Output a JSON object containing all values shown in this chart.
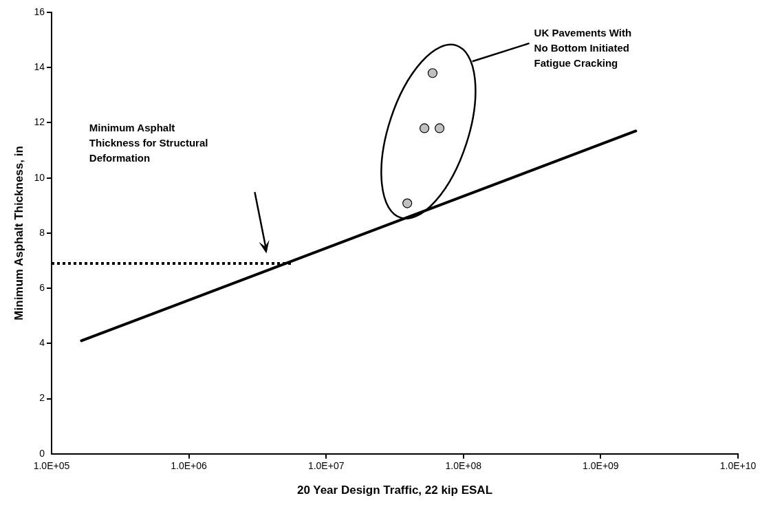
{
  "chart_data": {
    "type": "scatter",
    "xlabel": "20 Year Design Traffic, 22 kip ESAL",
    "ylabel": "Minimum Asphalt Thickness, in",
    "log": "x",
    "grid": false,
    "legend": false,
    "xlim": [
      100000,
      10000000000
    ],
    "xticks": [
      {
        "value": 100000,
        "label": "1.0E+05"
      },
      {
        "value": 1000000,
        "label": "1.0E+06"
      },
      {
        "value": 10000000,
        "label": "1.0E+07"
      },
      {
        "value": 100000000,
        "label": "1.0E+08"
      },
      {
        "value": 1000000000,
        "label": "1.0E+09"
      },
      {
        "value": 10000000000,
        "label": "1.0E+10"
      }
    ],
    "ylim": [
      0,
      16
    ],
    "yticks": [
      0,
      2,
      4,
      6,
      8,
      10,
      12,
      14,
      16
    ],
    "series": [
      {
        "type": "line",
        "color": "#000000",
        "marker": "none",
        "line_style": "solid",
        "x": [
          165000,
          1800000000
        ],
        "values": [
          4.1,
          11.7
        ]
      },
      {
        "type": "line",
        "color": "#000000",
        "marker": "none",
        "line_style": "dotted",
        "x": [
          100000,
          5700000
        ],
        "values": [
          6.9,
          6.9
        ]
      },
      {
        "type": "scatter",
        "color": "#c0c0c0",
        "marker": "circle",
        "x": [
          59600000,
          52000000,
          67000000,
          39000000
        ],
        "values": [
          13.8,
          11.8,
          11.8,
          9.08
        ]
      }
    ],
    "annotations": [
      "Minimum Asphalt Thickness for Structural Deformation",
      "UK Pavements With No Bottom Initiated Fatigue Cracking"
    ]
  }
}
